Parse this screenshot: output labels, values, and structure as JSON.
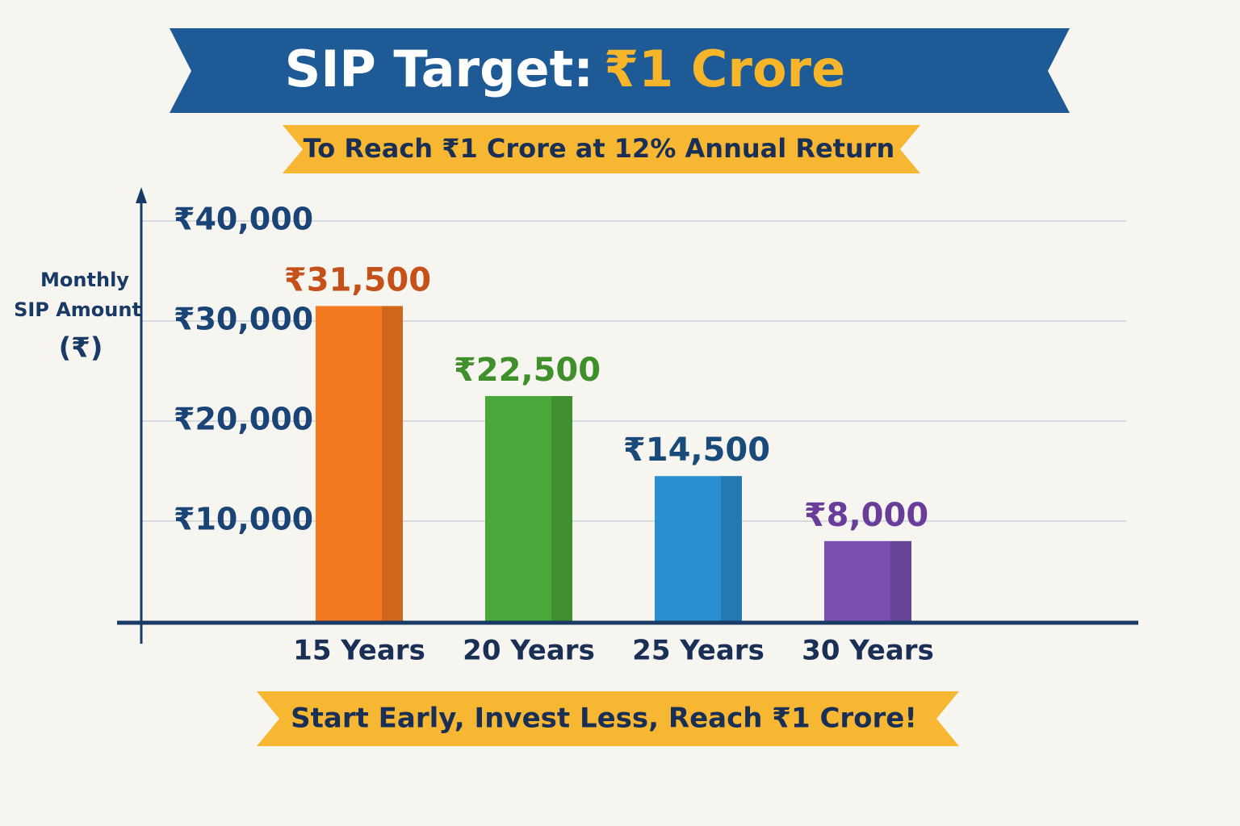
{
  "chart_data": {
    "type": "bar",
    "title": "SIP Target:",
    "title_highlight": "₹1 Crore",
    "subtitle": "To Reach ₹1 Crore at 12% Annual Return",
    "footer": "Start Early, Invest Less, Reach ₹1 Crore!",
    "ylabel": [
      "Monthly",
      "SIP Amount",
      "(₹)"
    ],
    "categories": [
      "15 Years",
      "20 Years",
      "25 Years",
      "30 Years"
    ],
    "values": [
      31500,
      22500,
      14500,
      8000
    ],
    "value_labels": [
      "₹31,500",
      "₹22,500",
      "₹14,500",
      "₹8,000"
    ],
    "colors": [
      "#f47a20",
      "#4aa83a",
      "#2a8fd0",
      "#7a4fb0"
    ],
    "value_label_colors": [
      "#c4501a",
      "#3f8f2a",
      "#1a4a7a",
      "#6a3d9a"
    ],
    "ylim": [
      0,
      40000
    ],
    "yticks": [
      {
        "value": 10000,
        "label": "₹10,000"
      },
      {
        "value": 20000,
        "label": "₹20,000"
      },
      {
        "value": 30000,
        "label": "₹30,000"
      },
      {
        "value": 40000,
        "label": "₹40,000"
      }
    ],
    "grid": true
  }
}
